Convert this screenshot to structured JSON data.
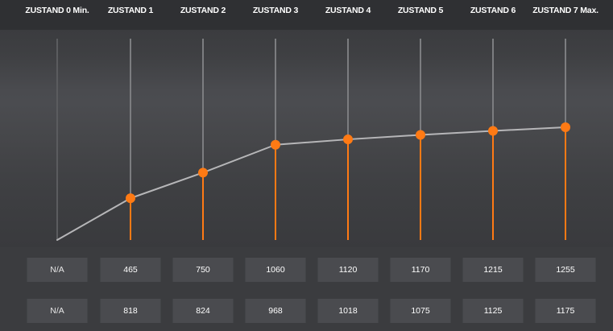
{
  "columns": [
    {
      "label": "ZUSTAND 0 Min.",
      "row1": "N/A",
      "row2": "N/A"
    },
    {
      "label": "ZUSTAND 1",
      "row1": "465",
      "row2": "818"
    },
    {
      "label": "ZUSTAND 2",
      "row1": "750",
      "row2": "824"
    },
    {
      "label": "ZUSTAND 3",
      "row1": "1060",
      "row2": "968"
    },
    {
      "label": "ZUSTAND 4",
      "row1": "1120",
      "row2": "1018"
    },
    {
      "label": "ZUSTAND 5",
      "row1": "1170",
      "row2": "1075"
    },
    {
      "label": "ZUSTAND 6",
      "row1": "1215",
      "row2": "1125"
    },
    {
      "label": "ZUSTAND 7 Max.",
      "row1": "1255",
      "row2": "1175"
    }
  ],
  "chart": {
    "series_values": [
      0,
      465,
      750,
      1060,
      1120,
      1170,
      1215,
      1255
    ],
    "colors": {
      "stem_inactive": "#7c7d80",
      "stem_disabled": "#5b5c5f",
      "stem_active": "#ff7a14",
      "dot": "#ff7a14",
      "line": "#b6b6b8"
    }
  }
}
